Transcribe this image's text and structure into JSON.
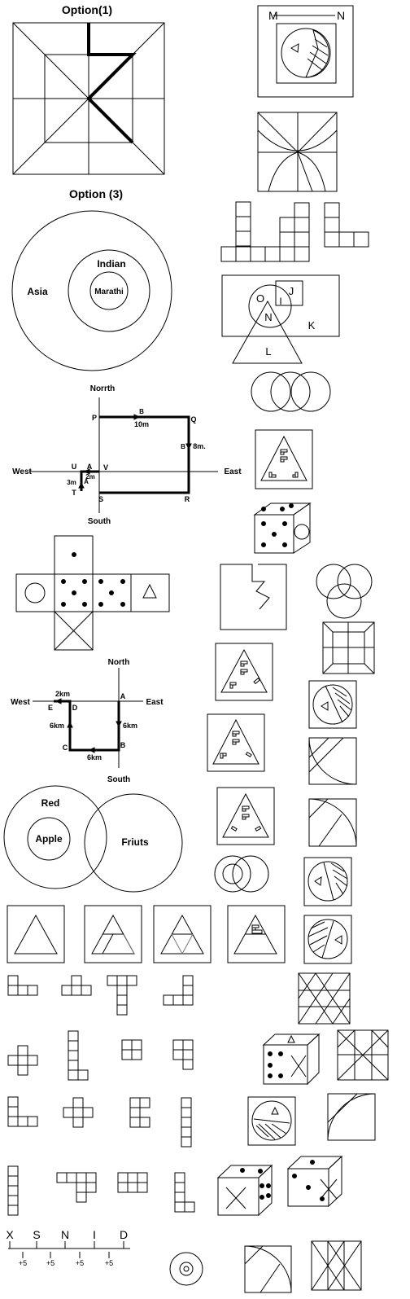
{
  "option1": {
    "title": "Option(1)"
  },
  "option3": {
    "title": "Option (3)"
  },
  "venn_asia": {
    "outer": "Asia",
    "middle": "Indian",
    "inner": "Marathi"
  },
  "venn_jkln": {
    "o": "O",
    "j": "J",
    "i": "I",
    "n": "N",
    "k": "K",
    "l": "L"
  },
  "mn_box": {
    "m": "M",
    "n": "N"
  },
  "direction1": {
    "north": "Norrth",
    "south": "South",
    "west": "West",
    "east": "East",
    "p": "P",
    "q": "Q",
    "r": "R",
    "s": "S",
    "t": "T",
    "u": "U",
    "v": "V",
    "a_top": "A",
    "a_side": "A",
    "b_top": "B",
    "b_side": "B",
    "d_10m": "10m",
    "d_8m": "8m.",
    "d_2m": "2m",
    "d_3m": "3m"
  },
  "direction2": {
    "north": "North",
    "south": "South",
    "west": "West",
    "east": "East",
    "a": "A",
    "b": "B",
    "c": "C",
    "d": "D",
    "e": "E",
    "d_2km": "2km",
    "d_6km_left": "6km",
    "d_6km_right": "6km",
    "d_6km_bottom": "6km"
  },
  "venn_fruits": {
    "red": "Red",
    "apple": "Apple",
    "fruits": "Friuts"
  },
  "series": {
    "letters": [
      "X",
      "S",
      "N",
      "I",
      "D"
    ],
    "steps": [
      "+5",
      "+5",
      "+5",
      "+5"
    ]
  }
}
